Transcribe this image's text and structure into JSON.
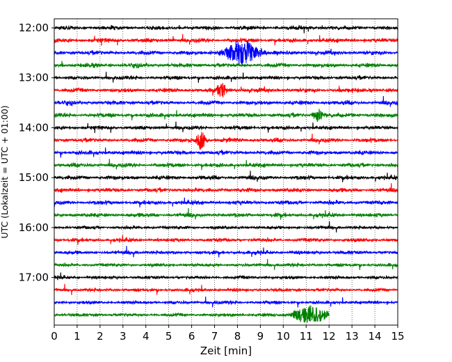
{
  "chart_data": {
    "type": "line",
    "title": "",
    "xlabel": "Zeit  [min]",
    "ylabel": "UTC (Lokalzeit = UTC + 01:00)",
    "xlim": [
      0,
      15
    ],
    "x_ticks": [
      "0",
      "1",
      "2",
      "3",
      "4",
      "5",
      "6",
      "7",
      "8",
      "9",
      "10",
      "11",
      "12",
      "13",
      "14",
      "15"
    ],
    "y_ticks": [
      "12:00",
      "13:00",
      "14:00",
      "15:00",
      "16:00",
      "17:00"
    ],
    "grid": "vertical-dotted",
    "legend": "none",
    "trace_interval_min": 15,
    "trace_colors": [
      "#000000",
      "#ff0000",
      "#0000ff",
      "#008000"
    ],
    "traces": [
      {
        "start": "12:00",
        "noise": 0.9,
        "events": []
      },
      {
        "start": "12:15",
        "noise": 1.0,
        "events": []
      },
      {
        "start": "12:30",
        "noise": 1.0,
        "events": [
          {
            "t": 8.2,
            "amp": 18,
            "dur": 1.6
          }
        ]
      },
      {
        "start": "12:45",
        "noise": 1.0,
        "events": []
      },
      {
        "start": "13:00",
        "noise": 0.9,
        "events": []
      },
      {
        "start": "13:15",
        "noise": 1.0,
        "events": [
          {
            "t": 7.3,
            "amp": 12,
            "dur": 0.5
          }
        ]
      },
      {
        "start": "13:30",
        "noise": 1.0,
        "events": []
      },
      {
        "start": "13:45",
        "noise": 1.0,
        "events": [
          {
            "t": 11.5,
            "amp": 9,
            "dur": 0.5
          }
        ]
      },
      {
        "start": "14:00",
        "noise": 0.9,
        "events": []
      },
      {
        "start": "14:15",
        "noise": 1.0,
        "events": [
          {
            "t": 6.4,
            "amp": 14,
            "dur": 0.5
          }
        ]
      },
      {
        "start": "14:30",
        "noise": 1.0,
        "events": []
      },
      {
        "start": "14:45",
        "noise": 1.0,
        "events": []
      },
      {
        "start": "15:00",
        "noise": 1.0,
        "events": []
      },
      {
        "start": "15:15",
        "noise": 1.0,
        "events": []
      },
      {
        "start": "15:30",
        "noise": 1.0,
        "events": []
      },
      {
        "start": "15:45",
        "noise": 1.0,
        "events": []
      },
      {
        "start": "16:00",
        "noise": 0.8,
        "events": []
      },
      {
        "start": "16:15",
        "noise": 0.9,
        "events": []
      },
      {
        "start": "16:30",
        "noise": 0.9,
        "events": []
      },
      {
        "start": "16:45",
        "noise": 0.8,
        "events": []
      },
      {
        "start": "17:00",
        "noise": 0.8,
        "events": []
      },
      {
        "start": "17:15",
        "noise": 0.8,
        "events": []
      },
      {
        "start": "17:30",
        "noise": 0.8,
        "events": []
      },
      {
        "start": "17:45",
        "noise": 0.8,
        "events": [
          {
            "t": 11.2,
            "amp": 14,
            "dur": 1.6
          }
        ],
        "end": 12.0
      }
    ]
  }
}
